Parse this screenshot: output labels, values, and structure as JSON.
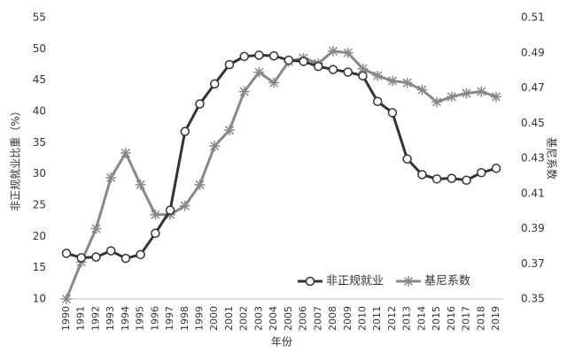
{
  "chart_data": {
    "type": "line",
    "xlabel": "年份",
    "ylabel": "非正规就业比重（%）",
    "y2label": "基尼系数",
    "categories": [
      "1990",
      "1991",
      "1992",
      "1993",
      "1994",
      "1995",
      "1996",
      "1997",
      "1998",
      "1999",
      "2000",
      "2001",
      "2002",
      "2003",
      "2004",
      "2005",
      "2006",
      "2007",
      "2008",
      "2009",
      "2010",
      "2011",
      "2012",
      "2013",
      "2014",
      "2015",
      "2016",
      "2017",
      "2018",
      "2019"
    ],
    "series": [
      {
        "name": "非正规就业",
        "color": "#333333",
        "marker": "circle",
        "values": [
          17.3,
          16.6,
          16.7,
          17.7,
          16.5,
          17.1,
          20.5,
          24.2,
          36.8,
          41.2,
          44.4,
          47.5,
          48.8,
          49.0,
          48.9,
          48.2,
          48.0,
          47.2,
          46.7,
          46.3,
          45.7,
          41.6,
          39.8,
          32.4,
          29.9,
          29.2,
          29.3,
          29.0,
          30.2,
          30.9
        ]
      },
      {
        "name": "基尼系数",
        "color": "#888888",
        "marker": "star",
        "axis": "y2",
        "values": [
          0.35,
          0.371,
          0.39,
          0.419,
          0.433,
          0.415,
          0.398,
          0.398,
          0.403,
          0.415,
          0.437,
          0.446,
          0.468,
          0.479,
          0.473,
          0.485,
          0.487,
          0.484,
          0.491,
          0.49,
          0.481,
          0.477,
          0.474,
          0.473,
          0.469,
          0.462,
          0.465,
          0.467,
          0.468,
          0.465
        ]
      }
    ],
    "ylim": [
      10,
      55
    ],
    "yticks": [
      10,
      15,
      20,
      25,
      30,
      35,
      40,
      45,
      50,
      55
    ],
    "y2lim": [
      0.35,
      0.51
    ],
    "y2ticks": [
      0.35,
      0.37,
      0.39,
      0.41,
      0.43,
      0.45,
      0.47,
      0.49,
      0.51
    ],
    "legend": "lower-right"
  }
}
